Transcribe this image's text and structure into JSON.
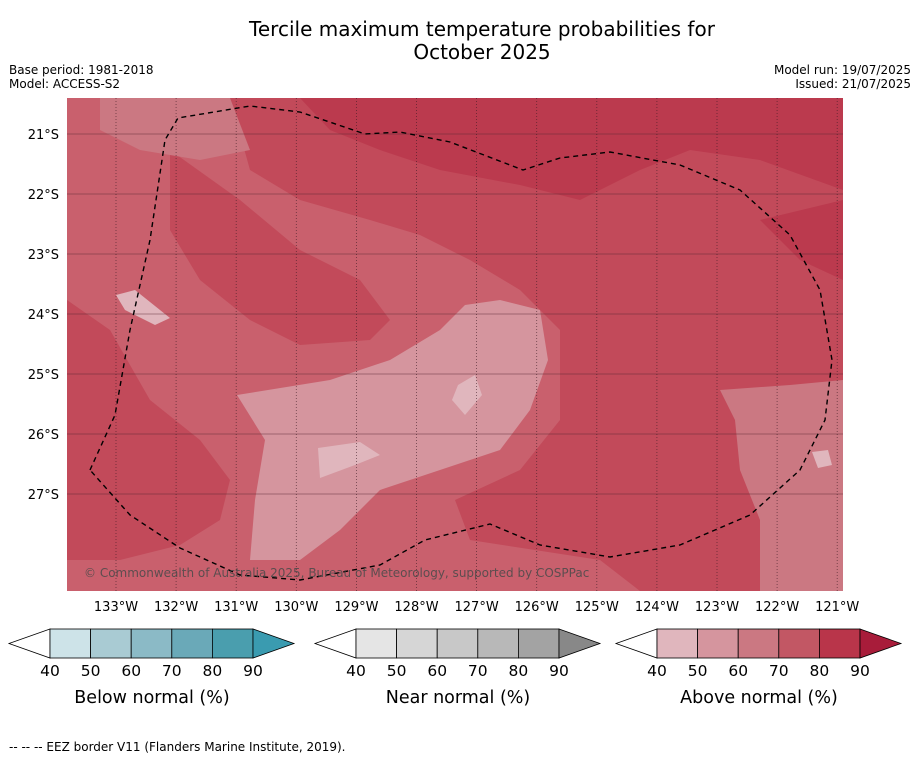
{
  "title": {
    "line1": "Tercile maximum temperature probabilities for",
    "line2": "October 2025"
  },
  "meta": {
    "base_period": "Base period: 1981-2018",
    "model": "Model: ACCESS-S2",
    "model_run": "Model run: 19/07/2025",
    "issued": "Issued: 21/07/2025"
  },
  "map": {
    "copyright": "© Commonwealth of Australia 2025, Bureau of Meteorology, supported by COSPPac",
    "lat_labels": [
      "21°S",
      "22°S",
      "23°S",
      "24°S",
      "25°S",
      "26°S",
      "27°S"
    ],
    "lon_labels": [
      "133°W",
      "132°W",
      "131°W",
      "130°W",
      "129°W",
      "128°W",
      "127°W",
      "126°W",
      "125°W",
      "124°W",
      "123°W",
      "122°W",
      "121°W"
    ],
    "background_color": "#c9606d",
    "border_style": "dashed"
  },
  "colorbars": [
    {
      "label": "Below normal (%)",
      "ticks": [
        "40",
        "50",
        "60",
        "70",
        "80",
        "90"
      ],
      "colors": [
        "#cde3e8",
        "#a9cbd3",
        "#8bbac6",
        "#6aa9b8",
        "#4a9eae",
        "#3a9bb0"
      ]
    },
    {
      "label": "Near normal (%)",
      "ticks": [
        "40",
        "50",
        "60",
        "70",
        "80",
        "90"
      ],
      "colors": [
        "#e5e5e5",
        "#d6d6d6",
        "#c8c8c8",
        "#b8b8b8",
        "#a3a3a3",
        "#888888"
      ]
    },
    {
      "label": "Above normal (%)",
      "ticks": [
        "40",
        "50",
        "60",
        "70",
        "80",
        "90"
      ],
      "colors": [
        "#e0b6bd",
        "#d5959e",
        "#cb7882",
        "#c25764",
        "#b9354a",
        "#a81c3a"
      ]
    }
  ],
  "footnote": "--  --  -- EEZ border V11 (Flanders Marine Institute, 2019)."
}
